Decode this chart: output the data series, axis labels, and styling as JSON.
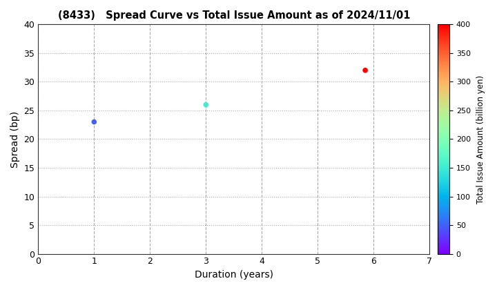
{
  "title": "(8433)   Spread Curve vs Total Issue Amount as of 2024/11/01",
  "xlabel": "Duration (years)",
  "ylabel": "Spread (bp)",
  "colorbar_label": "Total Issue Amount (billion yen)",
  "xlim": [
    0,
    7
  ],
  "ylim": [
    0,
    40
  ],
  "xticks": [
    0,
    1,
    2,
    3,
    4,
    5,
    6,
    7
  ],
  "yticks": [
    0,
    5,
    10,
    15,
    20,
    25,
    30,
    35,
    40
  ],
  "colorbar_min": 0,
  "colorbar_max": 400,
  "colorbar_ticks": [
    0,
    50,
    100,
    150,
    200,
    250,
    300,
    350,
    400
  ],
  "points": [
    {
      "duration": 1.0,
      "spread": 23,
      "amount": 50
    },
    {
      "duration": 3.0,
      "spread": 26,
      "amount": 150
    },
    {
      "duration": 5.85,
      "spread": 32,
      "amount": 400
    }
  ],
  "marker_size": 30,
  "background_color": "#ffffff",
  "grid_h_color": "#aaaaaa",
  "grid_v_color": "#aaaaaa",
  "colormap": "rainbow",
  "figsize": [
    7.2,
    4.2
  ],
  "dpi": 100
}
